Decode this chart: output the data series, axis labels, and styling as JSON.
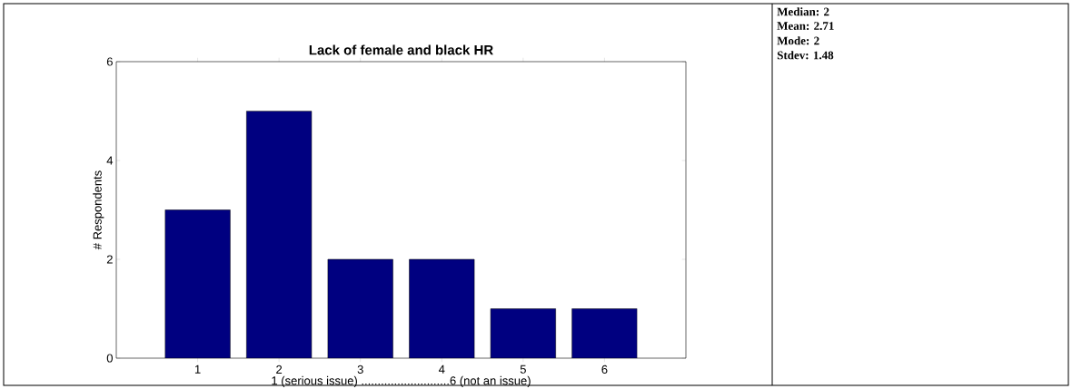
{
  "chart_data": {
    "type": "bar",
    "title": "Lack of female and black HR",
    "xlabel": "1 (serious issue) ...........................6 (not an issue)",
    "ylabel": "# Respondents",
    "x": [
      1,
      2,
      3,
      4,
      5,
      6
    ],
    "values": [
      3,
      5,
      2,
      2,
      1,
      1
    ],
    "color": "#000080",
    "xlim": [
      0,
      7
    ],
    "xticks": [
      1,
      2,
      3,
      4,
      5,
      6
    ],
    "ylim": [
      0,
      6
    ],
    "yticks": [
      0,
      2,
      4,
      6
    ],
    "grid": false,
    "annotations": [
      "Median: 2",
      "Mean: 2.71",
      "Mode: 2",
      "Stdev: 1.48"
    ]
  }
}
